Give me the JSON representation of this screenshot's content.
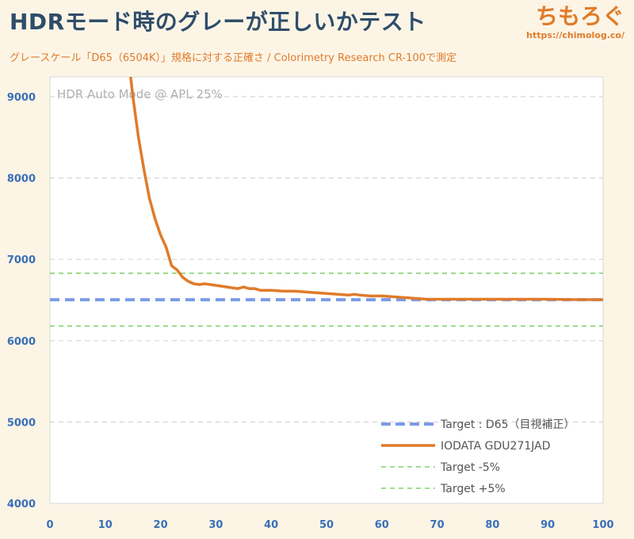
{
  "header": {
    "title": "HDRモード時のグレーが正しいかテスト",
    "subtitle": "グレースケール「D65（6504K）」規格に対する正確さ / Colorimetry Research CR-100で測定",
    "brand_name": "ちもろぐ",
    "brand_url": "https://chimolog.co/"
  },
  "chart_data": {
    "type": "line",
    "annotation": "HDR Auto Mode @ APL 25%",
    "xlim": [
      0,
      100
    ],
    "ylim": [
      4000,
      9000
    ],
    "x_ticks": [
      "0",
      "10",
      "20",
      "30",
      "40",
      "50",
      "60",
      "70",
      "80",
      "90",
      "100"
    ],
    "y_ticks": [
      "4000",
      "5000",
      "6000",
      "7000",
      "8000",
      "9000"
    ],
    "grid": "horizontal dashed",
    "legend_position": "bottom-right",
    "series": [
      {
        "name": "Target : D65（目視補正）",
        "color": "#7b9be6",
        "style": "dashed-thick",
        "x": [
          0,
          100
        ],
        "y": [
          6504,
          6504
        ]
      },
      {
        "name": "IODATA GDU271JAD",
        "color": "#e07b2a",
        "style": "solid",
        "x": [
          14,
          15,
          16,
          17,
          18,
          19,
          20,
          21,
          22,
          23,
          24,
          25,
          26,
          27,
          28,
          29,
          30,
          32,
          34,
          35,
          36,
          37,
          38,
          40,
          42,
          44,
          46,
          48,
          50,
          52,
          54,
          55,
          56,
          58,
          60,
          62,
          64,
          66,
          68,
          70,
          75,
          80,
          85,
          90,
          95,
          100
        ],
        "y": [
          9600,
          9000,
          8500,
          8100,
          7750,
          7500,
          7300,
          7150,
          6920,
          6870,
          6780,
          6730,
          6700,
          6690,
          6700,
          6690,
          6680,
          6660,
          6640,
          6660,
          6640,
          6640,
          6620,
          6620,
          6610,
          6610,
          6600,
          6590,
          6580,
          6570,
          6560,
          6570,
          6560,
          6550,
          6550,
          6540,
          6530,
          6520,
          6510,
          6510,
          6510,
          6510,
          6510,
          6510,
          6505,
          6505
        ]
      },
      {
        "name": "Target -5%",
        "color": "#7fd36a",
        "style": "dashed",
        "x": [
          0,
          100
        ],
        "y": [
          6179,
          6179
        ]
      },
      {
        "name": "Target +5%",
        "color": "#7fd36a",
        "style": "dashed",
        "x": [
          0,
          100
        ],
        "y": [
          6829,
          6829
        ]
      }
    ]
  }
}
